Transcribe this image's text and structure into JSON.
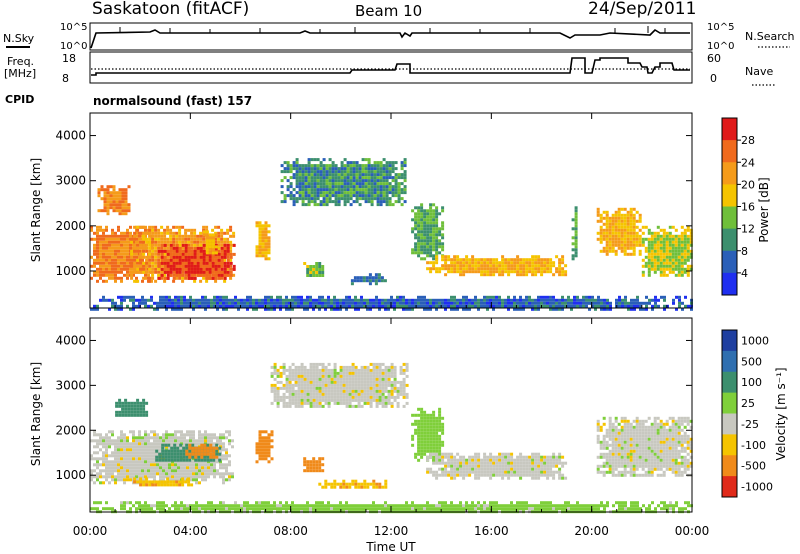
{
  "header": {
    "station": "Saskatoon (fitACF)",
    "beam": "Beam 10",
    "date": "24/Sep/2011"
  },
  "status_panels": {
    "nsky": {
      "label": "N.Sky",
      "ticks": [
        "10^5",
        "10^0"
      ]
    },
    "nsearch": {
      "label": "N.Search",
      "ticks": [
        "10^5",
        "10^0"
      ]
    },
    "freq": {
      "label": "Freq.",
      "unit": "[MHz]",
      "ticks": [
        "18",
        "8"
      ]
    },
    "nave": {
      "label": "Nave",
      "ticks": [
        "60",
        "0"
      ]
    },
    "cpid": {
      "label": "CPID",
      "value": "normalsound (fast) 157"
    }
  },
  "time_axis": {
    "title": "Time UT",
    "ticks": [
      "00:00",
      "04:00",
      "08:00",
      "12:00",
      "16:00",
      "20:00",
      "00:00"
    ]
  },
  "power_colorbar": {
    "title": "Power [dB]",
    "ticks": [
      "4",
      "8",
      "12",
      "16",
      "20",
      "24",
      "28"
    ],
    "colors": [
      "#1f2ff0",
      "#2a5fb8",
      "#3c8f6e",
      "#6fbf3a",
      "#f5c400",
      "#f59b1a",
      "#f06a1d",
      "#e01a1a"
    ]
  },
  "velocity_colorbar": {
    "title": "Velocity [m s⁻¹]",
    "ticks": [
      "1000",
      "500",
      "100",
      "25",
      "-25",
      "-100",
      "-500",
      "-1000"
    ],
    "colors": [
      "#1f3fa0",
      "#2f6fb0",
      "#3c8f6e",
      "#7fcf3a",
      "#c8c8c0",
      "#f5c400",
      "#f08a1a",
      "#e02a1a"
    ]
  },
  "chart_data": [
    {
      "type": "heatmap",
      "title": "Power",
      "xlabel": "Time UT",
      "ylabel": "Slant Range [km]",
      "xlim": [
        0,
        24
      ],
      "ylim": [
        180,
        4500
      ],
      "yticks": [
        "1000",
        "2000",
        "3000",
        "4000"
      ],
      "colorbar_label": "Power [dB]",
      "regions": [
        {
          "x": [
            0.0,
            2.4
          ],
          "y": [
            800,
            2000
          ],
          "value": 24
        },
        {
          "x": [
            0.3,
            1.6
          ],
          "y": [
            2300,
            2900
          ],
          "value": 24
        },
        {
          "x": [
            1.6,
            5.7
          ],
          "y": [
            800,
            2000
          ],
          "value": 22
        },
        {
          "x": [
            2.7,
            5.7
          ],
          "y": [
            850,
            1600
          ],
          "value": 28
        },
        {
          "x": [
            4.5,
            5.0
          ],
          "y": [
            1400,
            1900
          ],
          "value": 20
        },
        {
          "x": [
            6.6,
            7.1
          ],
          "y": [
            1250,
            2100
          ],
          "value": 20
        },
        {
          "x": [
            7.6,
            12.6
          ],
          "y": [
            2500,
            3500
          ],
          "value": 10
        },
        {
          "x": [
            8.5,
            9.3
          ],
          "y": [
            900,
            1200
          ],
          "value": 14
        },
        {
          "x": [
            10.4,
            11.8
          ],
          "y": [
            750,
            950
          ],
          "value": 8
        },
        {
          "x": [
            12.8,
            14.0
          ],
          "y": [
            1300,
            2500
          ],
          "value": 12
        },
        {
          "x": [
            13.4,
            19.0
          ],
          "y": [
            950,
            1350
          ],
          "value": 20
        },
        {
          "x": [
            19.2,
            19.4
          ],
          "y": [
            1300,
            2500
          ],
          "value": 12
        },
        {
          "x": [
            20.2,
            21.9
          ],
          "y": [
            1400,
            2400
          ],
          "value": 20
        },
        {
          "x": [
            22.0,
            24.0
          ],
          "y": [
            900,
            2000
          ],
          "value": 16
        },
        {
          "x": [
            0.0,
            24.0
          ],
          "y": [
            180,
            450
          ],
          "value": 6
        }
      ]
    },
    {
      "type": "heatmap",
      "title": "Velocity",
      "xlabel": "Time UT",
      "ylabel": "Slant Range [km]",
      "xlim": [
        0,
        24
      ],
      "ylim": [
        180,
        4500
      ],
      "yticks": [
        "1000",
        "2000",
        "3000",
        "4000"
      ],
      "colorbar_label": "Velocity [m s⁻¹]",
      "regions": [
        {
          "x": [
            0.0,
            5.7
          ],
          "y": [
            800,
            2000
          ],
          "value": 0
        },
        {
          "x": [
            1.0,
            2.2
          ],
          "y": [
            2300,
            2700
          ],
          "value": 200
        },
        {
          "x": [
            2.6,
            5.2
          ],
          "y": [
            1300,
            1700
          ],
          "value": 300
        },
        {
          "x": [
            3.8,
            5.0
          ],
          "y": [
            1400,
            1700
          ],
          "value": -300
        },
        {
          "x": [
            1.6,
            4.0
          ],
          "y": [
            750,
            950
          ],
          "value": -80
        },
        {
          "x": [
            6.6,
            7.2
          ],
          "y": [
            1300,
            2000
          ],
          "value": -200
        },
        {
          "x": [
            7.2,
            12.6
          ],
          "y": [
            2500,
            3500
          ],
          "value": 0
        },
        {
          "x": [
            8.5,
            9.3
          ],
          "y": [
            1100,
            1400
          ],
          "value": -200
        },
        {
          "x": [
            9.1,
            11.8
          ],
          "y": [
            750,
            900
          ],
          "value": -80
        },
        {
          "x": [
            12.8,
            14.0
          ],
          "y": [
            1300,
            2500
          ],
          "value": 60
        },
        {
          "x": [
            13.4,
            19.0
          ],
          "y": [
            950,
            1500
          ],
          "value": 0
        },
        {
          "x": [
            20.2,
            24.0
          ],
          "y": [
            1000,
            2300
          ],
          "value": 0
        },
        {
          "x": [
            0.0,
            24.0
          ],
          "y": [
            180,
            420
          ],
          "value": 50
        }
      ]
    }
  ]
}
